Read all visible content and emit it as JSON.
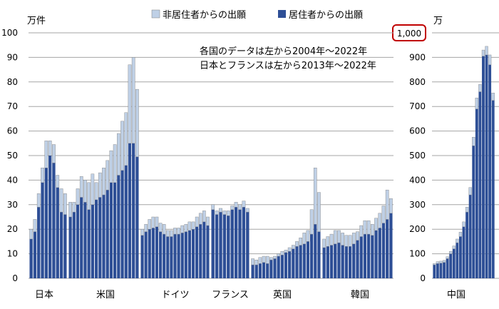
{
  "legend": {
    "nonresident": "非居住者からの出願",
    "resident": "居住者からの出願"
  },
  "colors": {
    "resident": "#2E4F96",
    "nonresident": "#BFD0E6",
    "grid": "#A6A6A6",
    "highlight_border": "#C00000"
  },
  "annotation": {
    "line1": "各国のデータは左から2004年～2022年",
    "line2": "日本とフランスは左から2013年～2022年"
  },
  "chart_data": [
    {
      "type": "bar",
      "stacked": true,
      "ylabel": "万件",
      "ylim": [
        0,
        100
      ],
      "yticks": [
        0,
        10,
        20,
        30,
        40,
        50,
        60,
        70,
        80,
        90,
        100
      ],
      "grid": true,
      "legend_position": "top",
      "groups": [
        {
          "name": "日本",
          "years": "2013-2022",
          "resident": [
            16.0,
            19.0,
            29.0,
            39.0,
            45.0,
            50.0,
            47.0,
            37.0,
            27.0,
            26.0
          ],
          "nonresident": [
            4.0,
            5.0,
            5.5,
            6.0,
            11.0,
            6.0,
            7.5,
            5.0,
            9.5,
            8.5
          ]
        },
        {
          "name": "米国",
          "years": "2004-2022",
          "resident": [
            25.0,
            27.0,
            30.0,
            33.0,
            31.0,
            28.0,
            30.0,
            32.0,
            33.0,
            34.0,
            36.0,
            39.0,
            39.0,
            42.0,
            44.0,
            46.0,
            55.0,
            55.0,
            49.5
          ],
          "nonresident": [
            6.0,
            4.0,
            6.5,
            8.5,
            9.0,
            11.0,
            12.5,
            7.0,
            10.0,
            11.0,
            12.0,
            13.0,
            15.5,
            17.0,
            20.0,
            21.5,
            32.0,
            35.0,
            27.5
          ]
        },
        {
          "name": "ドイツ",
          "years": "2004-2022",
          "resident": [
            17.5,
            19.0,
            20.0,
            20.5,
            21.0,
            19.0,
            18.0,
            17.0,
            17.0,
            18.0,
            18.0,
            18.5,
            19.0,
            19.5,
            20.0,
            21.0,
            22.0,
            23.0,
            21.5
          ],
          "nonresident": [
            2.5,
            3.0,
            4.0,
            4.5,
            4.0,
            3.5,
            4.0,
            2.5,
            2.5,
            2.5,
            2.5,
            3.0,
            3.0,
            3.5,
            3.0,
            4.0,
            4.5,
            4.5,
            3.5
          ]
        },
        {
          "name": "フランス",
          "years": "2013-2022",
          "resident": [
            28.0,
            26.0,
            27.0,
            26.0,
            25.5,
            28.0,
            29.0,
            28.0,
            29.0,
            27.0
          ],
          "nonresident": [
            2.0,
            1.5,
            1.5,
            1.5,
            2.0,
            1.5,
            2.0,
            2.0,
            2.5,
            1.5
          ]
        },
        {
          "name": "英国",
          "years": "2004-2022",
          "resident": [
            5.5,
            5.5,
            6.0,
            6.5,
            6.0,
            7.5,
            8.0,
            9.0,
            9.5,
            10.5,
            11.0,
            12.0,
            13.0,
            13.5,
            14.0,
            15.0,
            18.0,
            22.0,
            19.0
          ],
          "nonresident": [
            2.5,
            2.0,
            2.5,
            2.5,
            3.0,
            1.0,
            1.0,
            1.0,
            1.5,
            1.0,
            1.5,
            1.5,
            2.0,
            3.0,
            4.5,
            4.5,
            10.0,
            23.0,
            16.0
          ]
        },
        {
          "name": "韓国",
          "years": "2004-2022",
          "resident": [
            12.5,
            13.0,
            13.5,
            14.0,
            14.5,
            13.5,
            13.0,
            13.0,
            14.0,
            15.5,
            17.0,
            18.0,
            18.0,
            17.5,
            19.5,
            20.5,
            22.5,
            24.0,
            26.5
          ],
          "nonresident": [
            3.5,
            4.0,
            4.5,
            5.5,
            5.0,
            5.0,
            4.5,
            4.5,
            4.5,
            3.5,
            4.5,
            5.5,
            5.5,
            4.5,
            5.0,
            6.0,
            7.0,
            12.0,
            6.0
          ]
        }
      ]
    },
    {
      "type": "bar",
      "stacked": true,
      "ylabel": "万",
      "ylim": [
        0,
        1000
      ],
      "yticks": [
        0,
        100,
        200,
        300,
        400,
        500,
        600,
        700,
        800,
        900
      ],
      "top_tick_label": "1,000",
      "grid": true,
      "groups": [
        {
          "name": "中国",
          "years": "2004-2022",
          "resident": [
            55,
            60,
            62,
            65,
            80,
            100,
            120,
            145,
            170,
            210,
            270,
            340,
            540,
            690,
            760,
            905,
            910,
            870,
            725
          ],
          "nonresident": [
            5,
            8,
            8,
            8,
            8,
            10,
            12,
            15,
            18,
            20,
            20,
            30,
            35,
            45,
            30,
            25,
            35,
            40,
            30
          ]
        }
      ]
    }
  ]
}
